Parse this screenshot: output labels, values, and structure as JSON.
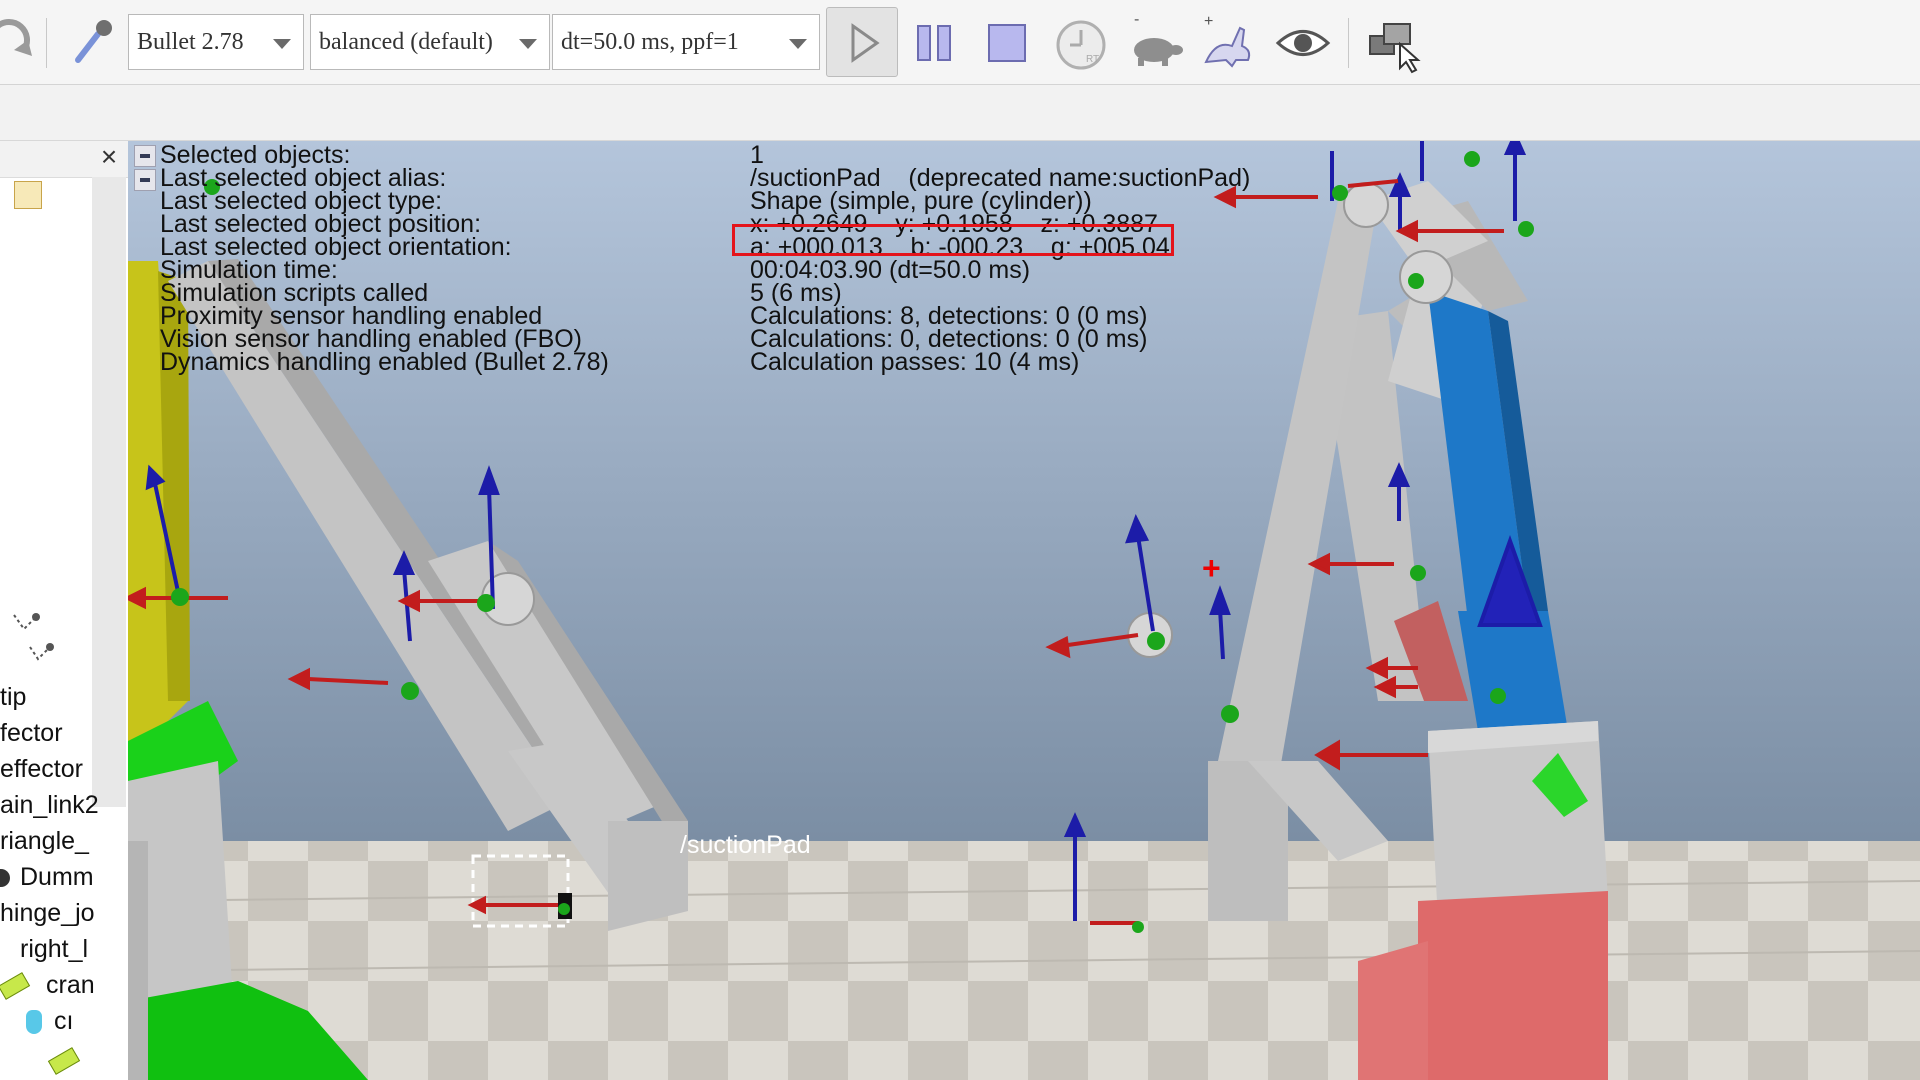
{
  "toolbar": {
    "engine_select": "Bullet 2.78",
    "accuracy_select": "balanced (default)",
    "timestep_select": "dt=50.0 ms, ppf=1",
    "buttons": [
      "undo-icon",
      "magnifier-icon",
      "play-icon",
      "pause-icon",
      "stop-icon",
      "realtime-icon",
      "slow-down-icon",
      "speed-up-icon",
      "visualize-icon",
      "windows-icon"
    ]
  },
  "hierarchy": {
    "items": [
      "tip",
      "fector",
      "effector",
      "ain_link2",
      "riangle_",
      "Dumm",
      "hinge_jo",
      "right_l",
      "cran",
      "cı"
    ]
  },
  "info": {
    "labels": [
      "Selected objects:",
      "Last selected object alias:",
      "Last selected object type:",
      "Last selected object position:",
      "Last selected object orientation:",
      "Simulation time:",
      "Simulation scripts called",
      "Proximity sensor handling enabled",
      "Vision sensor handling enabled (FBO)",
      "Dynamics handling enabled (Bullet 2.78)"
    ],
    "values": [
      "1",
      "/suctionPad    (deprecated name:suctionPad)",
      "Shape (simple, pure (cylinder))",
      "x: +0.2649    y: +0.1958    z: +0.3887",
      "a: +000.013    b: -000.23    g: +005.04",
      "00:04:03.90 (dt=50.0 ms)",
      "5 (6 ms)",
      "Calculations: 8, detections: 0 (0 ms)",
      "Calculations: 0, detections: 0 (0 ms)",
      "Calculation passes: 10 (4 ms)"
    ]
  },
  "scene": {
    "selected_label": "/suctionPad",
    "colors": {
      "sky_top": "#b4c5db",
      "sky_bottom": "#7b8ea4",
      "floor_light": "#dedbd4",
      "floor_dark": "#c9c5bd",
      "arm_gray": "#c8c8c8",
      "left_yellow": "#c7c41a",
      "left_green": "#12d312",
      "right_blue": "#1e78c8",
      "right_red": "#de6a6a"
    }
  }
}
